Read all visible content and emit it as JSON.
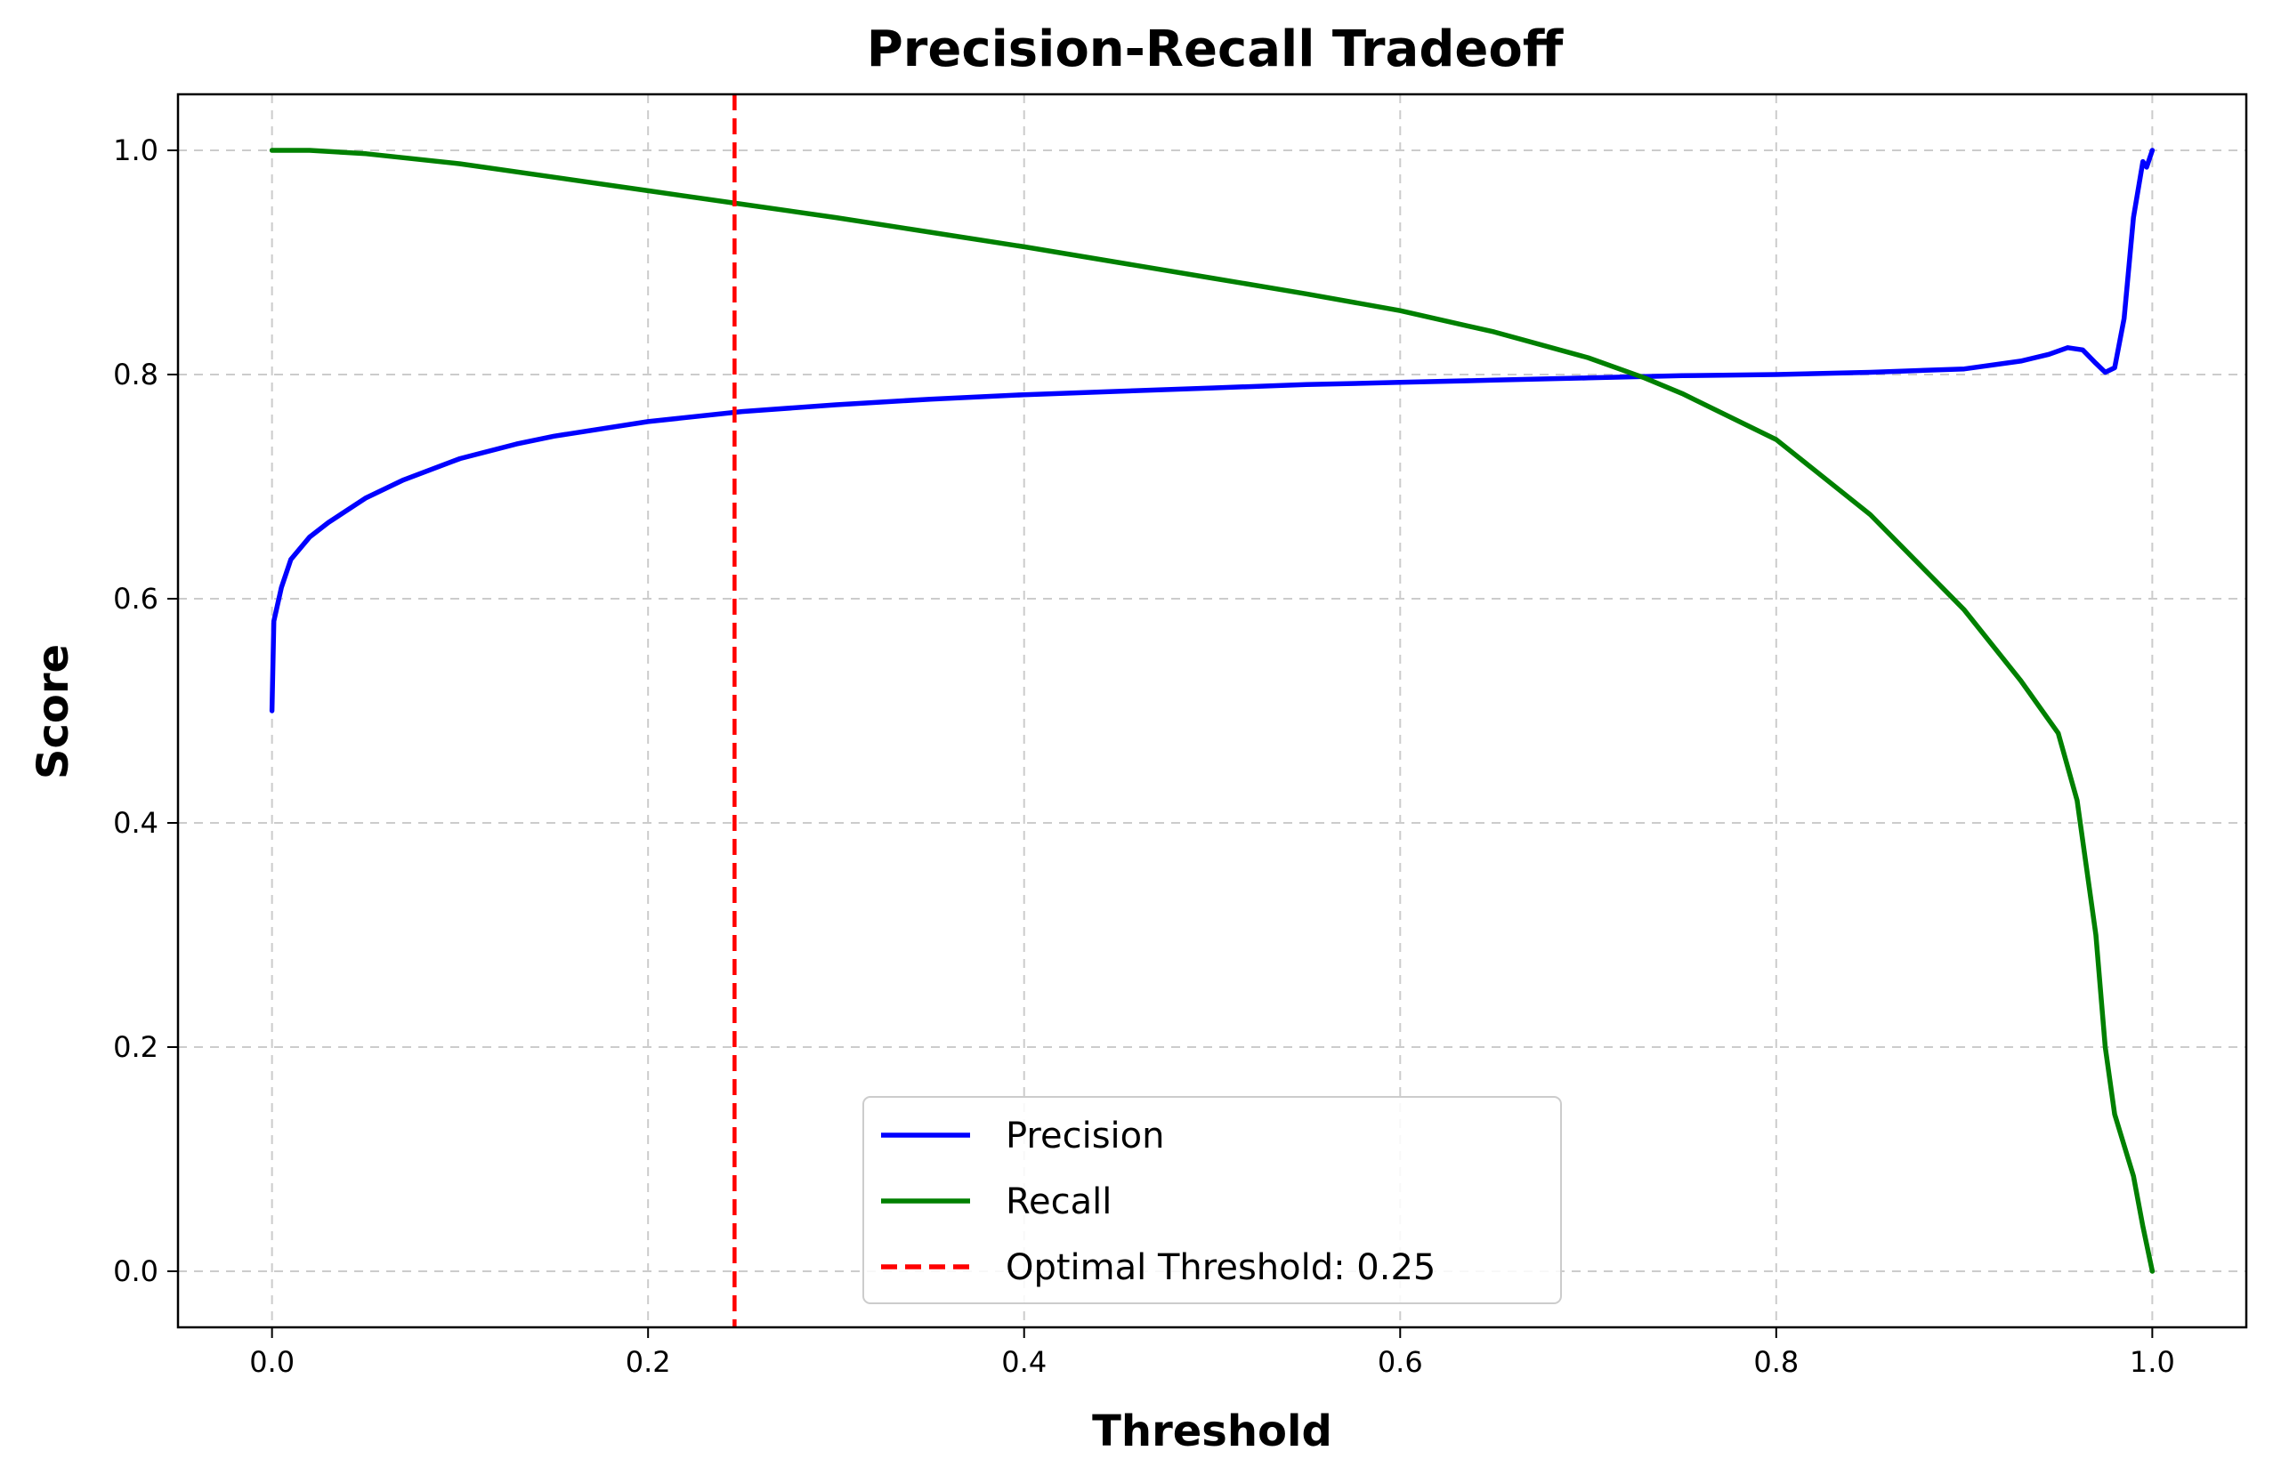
{
  "chart_data": {
    "type": "line",
    "title": "Precision-Recall Tradeoff",
    "xlabel": "Threshold",
    "ylabel": "Score",
    "xlim": [
      -0.05,
      1.05
    ],
    "ylim": [
      -0.05,
      1.05
    ],
    "grid": true,
    "x_ticks": [
      "0.0",
      "0.2",
      "0.4",
      "0.6",
      "0.8",
      "1.0"
    ],
    "y_ticks": [
      "0.0",
      "0.2",
      "0.4",
      "0.6",
      "0.8",
      "1.0"
    ],
    "legend_position": "bottom-center",
    "series": [
      {
        "name": "Precision",
        "color": "#0000ff",
        "style": "solid",
        "points": [
          [
            0.0,
            0.5
          ],
          [
            0.001,
            0.58
          ],
          [
            0.005,
            0.61
          ],
          [
            0.01,
            0.635
          ],
          [
            0.02,
            0.655
          ],
          [
            0.03,
            0.668
          ],
          [
            0.05,
            0.69
          ],
          [
            0.07,
            0.706
          ],
          [
            0.1,
            0.725
          ],
          [
            0.13,
            0.738
          ],
          [
            0.15,
            0.745
          ],
          [
            0.2,
            0.758
          ],
          [
            0.25,
            0.767
          ],
          [
            0.3,
            0.773
          ],
          [
            0.35,
            0.778
          ],
          [
            0.4,
            0.782
          ],
          [
            0.45,
            0.785
          ],
          [
            0.5,
            0.788
          ],
          [
            0.55,
            0.791
          ],
          [
            0.6,
            0.793
          ],
          [
            0.65,
            0.795
          ],
          [
            0.7,
            0.797
          ],
          [
            0.75,
            0.799
          ],
          [
            0.8,
            0.8
          ],
          [
            0.85,
            0.802
          ],
          [
            0.9,
            0.805
          ],
          [
            0.93,
            0.812
          ],
          [
            0.945,
            0.818
          ],
          [
            0.955,
            0.824
          ],
          [
            0.963,
            0.822
          ],
          [
            0.97,
            0.81
          ],
          [
            0.975,
            0.802
          ],
          [
            0.98,
            0.806
          ],
          [
            0.985,
            0.85
          ],
          [
            0.99,
            0.94
          ],
          [
            0.995,
            0.99
          ],
          [
            0.997,
            0.985
          ],
          [
            1.0,
            1.0
          ]
        ]
      },
      {
        "name": "Recall",
        "color": "#008000",
        "style": "solid",
        "points": [
          [
            0.0,
            1.0
          ],
          [
            0.02,
            1.0
          ],
          [
            0.05,
            0.997
          ],
          [
            0.1,
            0.988
          ],
          [
            0.15,
            0.976
          ],
          [
            0.2,
            0.964
          ],
          [
            0.25,
            0.952
          ],
          [
            0.3,
            0.94
          ],
          [
            0.35,
            0.927
          ],
          [
            0.4,
            0.914
          ],
          [
            0.45,
            0.9
          ],
          [
            0.5,
            0.886
          ],
          [
            0.55,
            0.872
          ],
          [
            0.6,
            0.857
          ],
          [
            0.65,
            0.838
          ],
          [
            0.7,
            0.815
          ],
          [
            0.73,
            0.797
          ],
          [
            0.75,
            0.783
          ],
          [
            0.8,
            0.742
          ],
          [
            0.85,
            0.675
          ],
          [
            0.9,
            0.59
          ],
          [
            0.93,
            0.527
          ],
          [
            0.95,
            0.48
          ],
          [
            0.96,
            0.42
          ],
          [
            0.97,
            0.3
          ],
          [
            0.975,
            0.2
          ],
          [
            0.98,
            0.14
          ],
          [
            0.99,
            0.085
          ],
          [
            0.995,
            0.04
          ],
          [
            1.0,
            0.0
          ]
        ]
      }
    ],
    "vertical_lines": [
      {
        "name": "Optimal Threshold: 0.25",
        "x": 0.246,
        "color": "#ff0000",
        "style": "dashed"
      }
    ]
  }
}
